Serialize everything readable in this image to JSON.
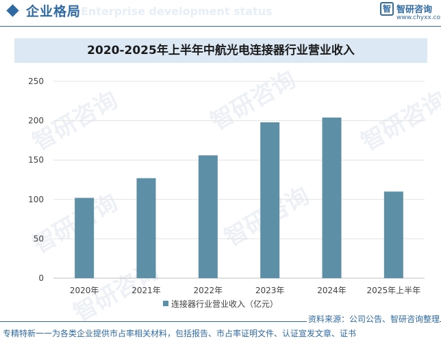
{
  "header": {
    "title": "企业格局",
    "subtitle": "Enterprise development status",
    "logo_mark": "智",
    "logo_name": "智研咨询",
    "logo_url": "www.chyxx.com"
  },
  "watermark_text": "智研咨询",
  "chart_data": {
    "type": "bar",
    "title": "2020-2025年上半年中航光电连接器行业营业收入",
    "categories": [
      "2020年",
      "2021年",
      "2022年",
      "2023年",
      "2024年",
      "2025年上半年"
    ],
    "series": [
      {
        "name": "连接器行业营业收入（亿元）",
        "values": [
          102,
          127,
          156,
          198,
          204,
          110
        ],
        "color": "#5d8fa6"
      }
    ],
    "ylim": [
      0,
      250
    ],
    "yticks": [
      0,
      50,
      100,
      150,
      200,
      250
    ],
    "grid": true,
    "legend": "bottom"
  },
  "footer": {
    "source": "资料来源：公司公告、智研咨询整理",
    "slogan": "专精特新一一为各类企业提供市占率相关材料，包括报告、市占率证明文件、认证宣发文章、证书"
  }
}
